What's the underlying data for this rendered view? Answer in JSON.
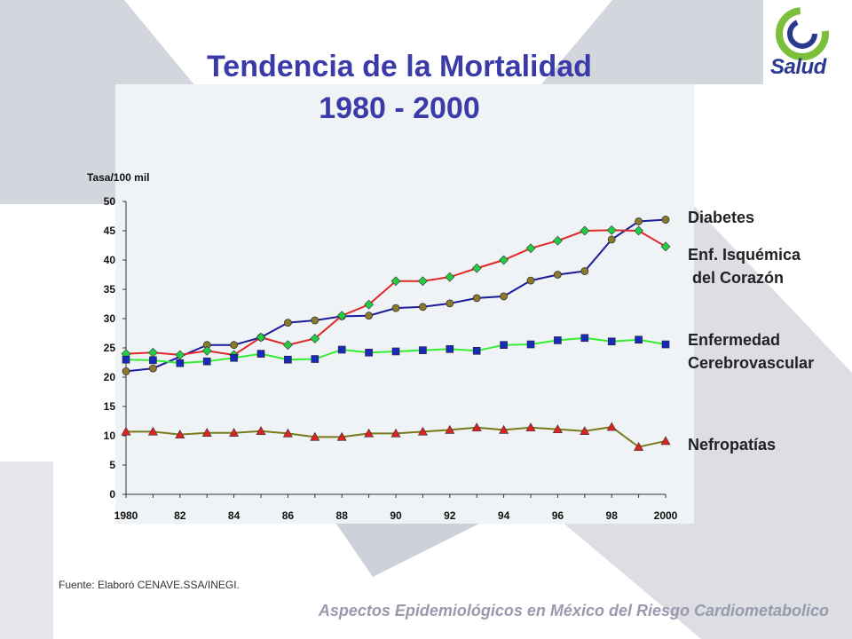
{
  "title_line1": "Tendencia de la Mortalidad",
  "title_line2": "1980 - 2000",
  "logo_text": "Salud",
  "source": "Fuente: Elaboró CENAVE.SSA/INEGI.",
  "footer": "Aspectos Epidemiológicos en México del Riesgo Cardiometabolico",
  "legend": {
    "diabetes": "Diabetes",
    "isquemica": "Enf. Isquémica\n del Corazón",
    "cerebro": "Enfermedad\nCerebrovascular",
    "nefro": "Nefropatías"
  },
  "colors": {
    "title": "#3a3aa8",
    "plot_bg": "#eff3f5",
    "decor": "#d0d4dc",
    "diabetes_line": "#1c1c9a",
    "diabetes_marker": "#8a7a2a",
    "isquemica_line": "#e02828",
    "isquemica_marker": "#22cc44",
    "cerebro_line": "#33ee33",
    "cerebro_marker": "#1a2ab8",
    "nefro_line": "#7a7a1a",
    "nefro_marker": "#dd2222"
  },
  "chart_data": {
    "type": "line",
    "ylabel": "Tasa/100 mil",
    "ylim": [
      0,
      50
    ],
    "yticks": [
      0,
      5,
      10,
      15,
      20,
      25,
      30,
      35,
      40,
      45,
      50
    ],
    "x": [
      1980,
      1981,
      1982,
      1983,
      1984,
      1985,
      1986,
      1987,
      1988,
      1989,
      1990,
      1991,
      1992,
      1993,
      1994,
      1995,
      1996,
      1997,
      1998,
      1999,
      2000
    ],
    "xtick_labels": [
      "1980",
      "82",
      "84",
      "86",
      "88",
      "90",
      "92",
      "94",
      "96",
      "98",
      "2000"
    ],
    "grid": false,
    "series": [
      {
        "name": "Diabetes",
        "line_color": "#1c1c9a",
        "marker": "circle",
        "marker_color": "#8a7a2a",
        "marker_x": [
          1980,
          1981,
          1983,
          1984,
          1985,
          1986,
          1987,
          1988,
          1989,
          1990,
          1991,
          1992,
          1993,
          1994,
          1995,
          1996,
          1997,
          1998,
          1999,
          2000
        ],
        "values": [
          21.0,
          21.5,
          null,
          25.5,
          25.5,
          26.8,
          29.3,
          29.7,
          30.4,
          30.5,
          31.8,
          32.0,
          32.6,
          33.5,
          33.8,
          36.5,
          37.5,
          38.1,
          43.5,
          46.6,
          46.9
        ]
      },
      {
        "name": "Enf. Isquémica del Corazón",
        "line_color": "#e02828",
        "marker": "diamond",
        "marker_color": "#22cc44",
        "values": [
          24.0,
          24.2,
          23.8,
          24.5,
          23.8,
          26.8,
          25.5,
          26.6,
          30.5,
          32.4,
          36.4,
          36.4,
          37.1,
          38.6,
          40.0,
          42.0,
          43.3,
          45.0,
          45.1,
          45.0,
          42.3
        ]
      },
      {
        "name": "Enfermedad Cerebrovascular",
        "line_color": "#33ee33",
        "marker": "square",
        "marker_color": "#1a2ab8",
        "values": [
          23.0,
          22.9,
          22.4,
          22.7,
          23.3,
          24.0,
          23.0,
          23.1,
          24.7,
          24.2,
          24.4,
          24.6,
          24.8,
          24.5,
          25.5,
          25.6,
          26.3,
          26.7,
          26.1,
          26.4,
          25.6
        ]
      },
      {
        "name": "Nefropatías",
        "line_color": "#7a7a1a",
        "marker": "triangle",
        "marker_color": "#dd2222",
        "values": [
          10.7,
          10.7,
          10.2,
          10.5,
          10.5,
          10.8,
          10.4,
          9.8,
          9.8,
          10.4,
          10.4,
          10.7,
          11.0,
          11.4,
          11.0,
          11.4,
          11.1,
          10.8,
          11.5,
          8.1,
          9.1
        ]
      }
    ]
  }
}
